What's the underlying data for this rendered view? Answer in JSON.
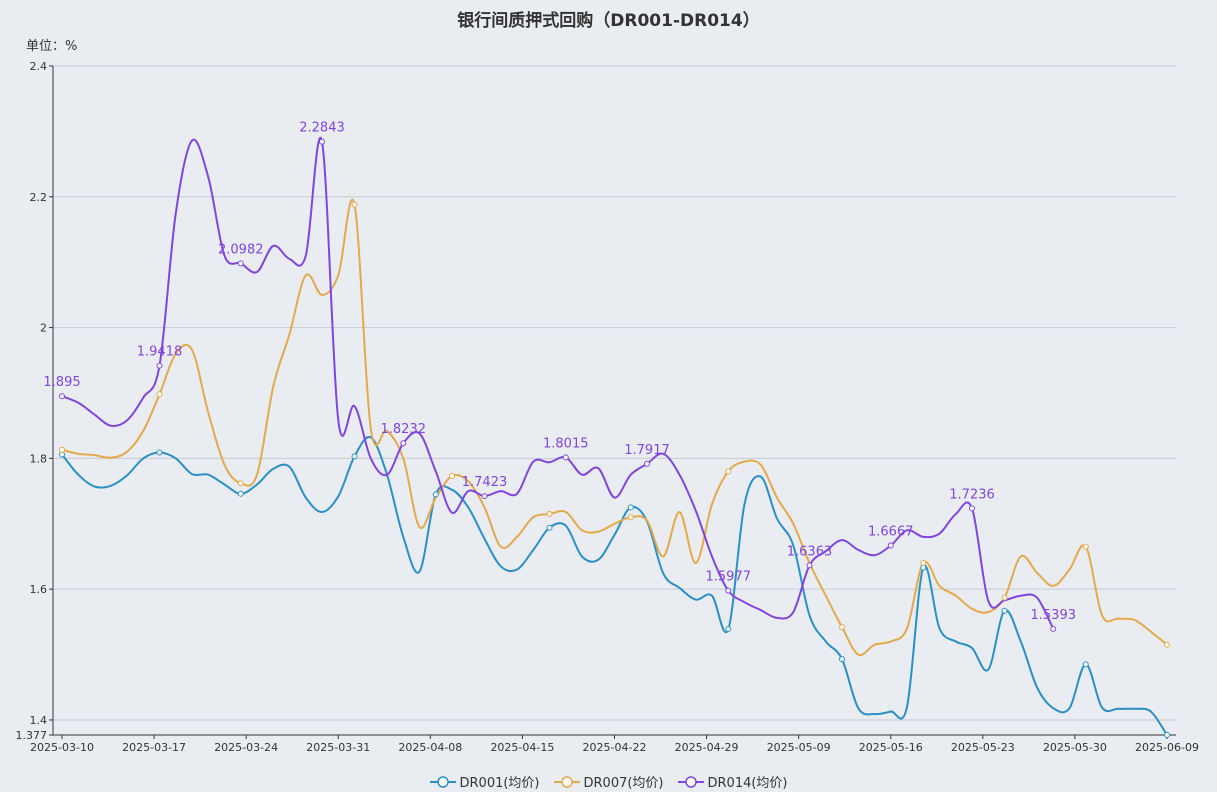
{
  "title": "银行间质押式回购（DR001-DR014）",
  "unit_label": "单位：%",
  "chart_data": {
    "type": "line",
    "title": "银行间质押式回购（DR001-DR014）",
    "ylabel": "单位：%",
    "ylim": [
      1.377,
      2.4
    ],
    "y_ticks": [
      "1.377",
      "1.4",
      "1.6",
      "1.8",
      "2",
      "2.2",
      "2.4"
    ],
    "x_tick_labels": [
      "2025-03-10",
      "2025-03-17",
      "2025-03-24",
      "2025-03-31",
      "2025-04-08",
      "2025-04-15",
      "2025-04-22",
      "2025-04-29",
      "2025-05-09",
      "2025-05-16",
      "2025-05-23",
      "2025-05-30",
      "2025-06-09"
    ],
    "grid": true,
    "legend_position": "bottom",
    "series": [
      {
        "name": "DR001(均价)",
        "color": "#2a8fc7",
        "points": [
          [
            0,
            1.806
          ],
          [
            1,
            1.775
          ],
          [
            2,
            1.757
          ],
          [
            3,
            1.758
          ],
          [
            4,
            1.774
          ],
          [
            5,
            1.8
          ],
          [
            6,
            1.809
          ],
          [
            7,
            1.8
          ],
          [
            8,
            1.776
          ],
          [
            9,
            1.775
          ],
          [
            10,
            1.76
          ],
          [
            11,
            1.746
          ],
          [
            12,
            1.76
          ],
          [
            13,
            1.784
          ],
          [
            14,
            1.787
          ],
          [
            15,
            1.74
          ],
          [
            16,
            1.718
          ],
          [
            17,
            1.742
          ],
          [
            18,
            1.803
          ],
          [
            19,
            1.832
          ],
          [
            20,
            1.775
          ],
          [
            21,
            1.68
          ],
          [
            22,
            1.627
          ],
          [
            23,
            1.745
          ],
          [
            24,
            1.752
          ],
          [
            25,
            1.725
          ],
          [
            26,
            1.677
          ],
          [
            27,
            1.635
          ],
          [
            28,
            1.63
          ],
          [
            29,
            1.66
          ],
          [
            30,
            1.694
          ],
          [
            31,
            1.697
          ],
          [
            32,
            1.65
          ],
          [
            33,
            1.645
          ],
          [
            34,
            1.683
          ],
          [
            35,
            1.725
          ],
          [
            36,
            1.704
          ],
          [
            37,
            1.624
          ],
          [
            38,
            1.602
          ],
          [
            39,
            1.584
          ],
          [
            40,
            1.59
          ],
          [
            41,
            1.539
          ],
          [
            42,
            1.73
          ],
          [
            43,
            1.772
          ],
          [
            44,
            1.708
          ],
          [
            45,
            1.667
          ],
          [
            46,
            1.56
          ],
          [
            47,
            1.52
          ],
          [
            48,
            1.493
          ],
          [
            49,
            1.418
          ],
          [
            50,
            1.409
          ],
          [
            51,
            1.413
          ],
          [
            52,
            1.42
          ],
          [
            53,
            1.633
          ],
          [
            54,
            1.54
          ],
          [
            55,
            1.52
          ],
          [
            56,
            1.51
          ],
          [
            57,
            1.477
          ],
          [
            58,
            1.567
          ],
          [
            59,
            1.52
          ],
          [
            60,
            1.45
          ],
          [
            61,
            1.418
          ],
          [
            62,
            1.418
          ],
          [
            63,
            1.485
          ],
          [
            64,
            1.419
          ],
          [
            65,
            1.417
          ],
          [
            66,
            1.417
          ],
          [
            67,
            1.413
          ],
          [
            68,
            1.377
          ]
        ]
      },
      {
        "name": "DR007(均价)",
        "color": "#e3a94b",
        "points": [
          [
            0,
            1.813
          ],
          [
            1,
            1.807
          ],
          [
            2,
            1.805
          ],
          [
            3,
            1.801
          ],
          [
            4,
            1.81
          ],
          [
            5,
            1.842
          ],
          [
            6,
            1.898
          ],
          [
            7,
            1.96
          ],
          [
            8,
            1.966
          ],
          [
            9,
            1.87
          ],
          [
            10,
            1.79
          ],
          [
            11,
            1.762
          ],
          [
            12,
            1.775
          ],
          [
            13,
            1.91
          ],
          [
            14,
            1.99
          ],
          [
            15,
            2.08
          ],
          [
            16,
            2.05
          ],
          [
            17,
            2.08
          ],
          [
            18,
            2.188
          ],
          [
            19,
            1.845
          ],
          [
            20,
            1.842
          ],
          [
            21,
            1.8
          ],
          [
            22,
            1.695
          ],
          [
            23,
            1.74
          ],
          [
            24,
            1.773
          ],
          [
            25,
            1.765
          ],
          [
            26,
            1.725
          ],
          [
            27,
            1.665
          ],
          [
            28,
            1.68
          ],
          [
            29,
            1.71
          ],
          [
            30,
            1.715
          ],
          [
            31,
            1.718
          ],
          [
            32,
            1.69
          ],
          [
            33,
            1.688
          ],
          [
            34,
            1.7
          ],
          [
            35,
            1.71
          ],
          [
            36,
            1.705
          ],
          [
            37,
            1.65
          ],
          [
            38,
            1.718
          ],
          [
            39,
            1.64
          ],
          [
            40,
            1.73
          ],
          [
            41,
            1.78
          ],
          [
            42,
            1.795
          ],
          [
            43,
            1.79
          ],
          [
            44,
            1.74
          ],
          [
            45,
            1.7
          ],
          [
            46,
            1.64
          ],
          [
            47,
            1.59
          ],
          [
            48,
            1.542
          ],
          [
            49,
            1.5
          ],
          [
            50,
            1.515
          ],
          [
            51,
            1.52
          ],
          [
            52,
            1.54
          ],
          [
            53,
            1.64
          ],
          [
            54,
            1.605
          ],
          [
            55,
            1.59
          ],
          [
            56,
            1.57
          ],
          [
            57,
            1.565
          ],
          [
            58,
            1.587
          ],
          [
            59,
            1.65
          ],
          [
            60,
            1.625
          ],
          [
            61,
            1.605
          ],
          [
            62,
            1.63
          ],
          [
            63,
            1.665
          ],
          [
            64,
            1.56
          ],
          [
            65,
            1.555
          ],
          [
            66,
            1.553
          ],
          [
            67,
            1.535
          ],
          [
            68,
            1.515
          ]
        ]
      },
      {
        "name": "DR014(均价)",
        "color": "#8145de",
        "points": [
          [
            0,
            1.895
          ],
          [
            1,
            1.885
          ],
          [
            2,
            1.867
          ],
          [
            3,
            1.85
          ],
          [
            4,
            1.858
          ],
          [
            5,
            1.893
          ],
          [
            6,
            1.9418
          ],
          [
            7,
            2.175
          ],
          [
            8,
            2.286
          ],
          [
            9,
            2.23
          ],
          [
            10,
            2.11
          ],
          [
            11,
            2.0982
          ],
          [
            12,
            2.085
          ],
          [
            13,
            2.125
          ],
          [
            14,
            2.105
          ],
          [
            15,
            2.11
          ],
          [
            16,
            2.2843
          ],
          [
            17,
            1.858
          ],
          [
            18,
            1.88
          ],
          [
            19,
            1.8
          ],
          [
            20,
            1.775
          ],
          [
            21,
            1.8232
          ],
          [
            22,
            1.838
          ],
          [
            23,
            1.78
          ],
          [
            24,
            1.717
          ],
          [
            25,
            1.75
          ],
          [
            26,
            1.7423
          ],
          [
            27,
            1.75
          ],
          [
            28,
            1.746
          ],
          [
            29,
            1.795
          ],
          [
            30,
            1.794
          ],
          [
            31,
            1.8015
          ],
          [
            32,
            1.775
          ],
          [
            33,
            1.785
          ],
          [
            34,
            1.74
          ],
          [
            35,
            1.775
          ],
          [
            36,
            1.7917
          ],
          [
            37,
            1.807
          ],
          [
            38,
            1.775
          ],
          [
            39,
            1.72
          ],
          [
            40,
            1.65
          ],
          [
            41,
            1.5977
          ],
          [
            42,
            1.58
          ],
          [
            43,
            1.568
          ],
          [
            44,
            1.556
          ],
          [
            45,
            1.565
          ],
          [
            46,
            1.6363
          ],
          [
            47,
            1.658
          ],
          [
            48,
            1.675
          ],
          [
            49,
            1.66
          ],
          [
            50,
            1.652
          ],
          [
            51,
            1.6667
          ],
          [
            52,
            1.69
          ],
          [
            53,
            1.68
          ],
          [
            54,
            1.685
          ],
          [
            55,
            1.715
          ],
          [
            56,
            1.7236
          ],
          [
            57,
            1.582
          ],
          [
            58,
            1.583
          ],
          [
            59,
            1.59
          ],
          [
            60,
            1.587
          ],
          [
            61,
            1.5393
          ]
        ]
      }
    ],
    "markers": {
      "DR001(均价)": [
        0,
        6,
        11,
        18,
        23,
        30,
        35,
        41,
        48,
        53,
        58,
        63,
        68
      ],
      "DR007(均价)": [
        0,
        6,
        11,
        18,
        24,
        30,
        35,
        41,
        48,
        53,
        58,
        63,
        68
      ],
      "DR014(均价)": [
        0,
        6,
        11,
        16,
        21,
        26,
        31,
        36,
        41,
        46,
        51,
        56,
        61
      ]
    },
    "data_labels": {
      "DR014(均价)": [
        {
          "i": 0,
          "text": "1.895"
        },
        {
          "i": 6,
          "text": "1.9418"
        },
        {
          "i": 11,
          "text": "2.0982"
        },
        {
          "i": 16,
          "text": "2.2843"
        },
        {
          "i": 21,
          "text": "1.8232"
        },
        {
          "i": 26,
          "text": "1.7423"
        },
        {
          "i": 31,
          "text": "1.8015"
        },
        {
          "i": 36,
          "text": "1.7917"
        },
        {
          "i": 41,
          "text": "1.5977"
        },
        {
          "i": 46,
          "text": "1.6363"
        },
        {
          "i": 51,
          "text": "1.6667"
        },
        {
          "i": 56,
          "text": "1.7236"
        },
        {
          "i": 61,
          "text": "1.5393"
        }
      ]
    }
  }
}
